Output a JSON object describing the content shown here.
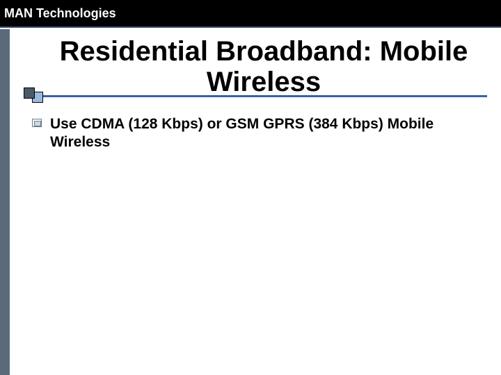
{
  "header": {
    "text": "MAN Technologies",
    "background_color": "#000000",
    "text_color": "#ffffff",
    "border_bottom_color": "#3a4a6a",
    "fontsize": 18
  },
  "left_stripe_color": "#5a6a7a",
  "title": {
    "text": "Residential Broadband: Mobile Wireless",
    "color": "#000000",
    "fontsize": 40,
    "underline_color": "#3a60a8",
    "square_back_color": "#4a5a68",
    "square_front_color": "#9abadf"
  },
  "bullets": {
    "items": [
      {
        "text": "Use CDMA (128 Kbps) or GSM GPRS (384 Kbps) Mobile Wireless"
      }
    ],
    "text_color": "#000000",
    "fontsize": 21,
    "icon_border_color": "#6a7a88",
    "icon_fill_color": "#cfd7e0"
  },
  "background_color": "#ffffff"
}
